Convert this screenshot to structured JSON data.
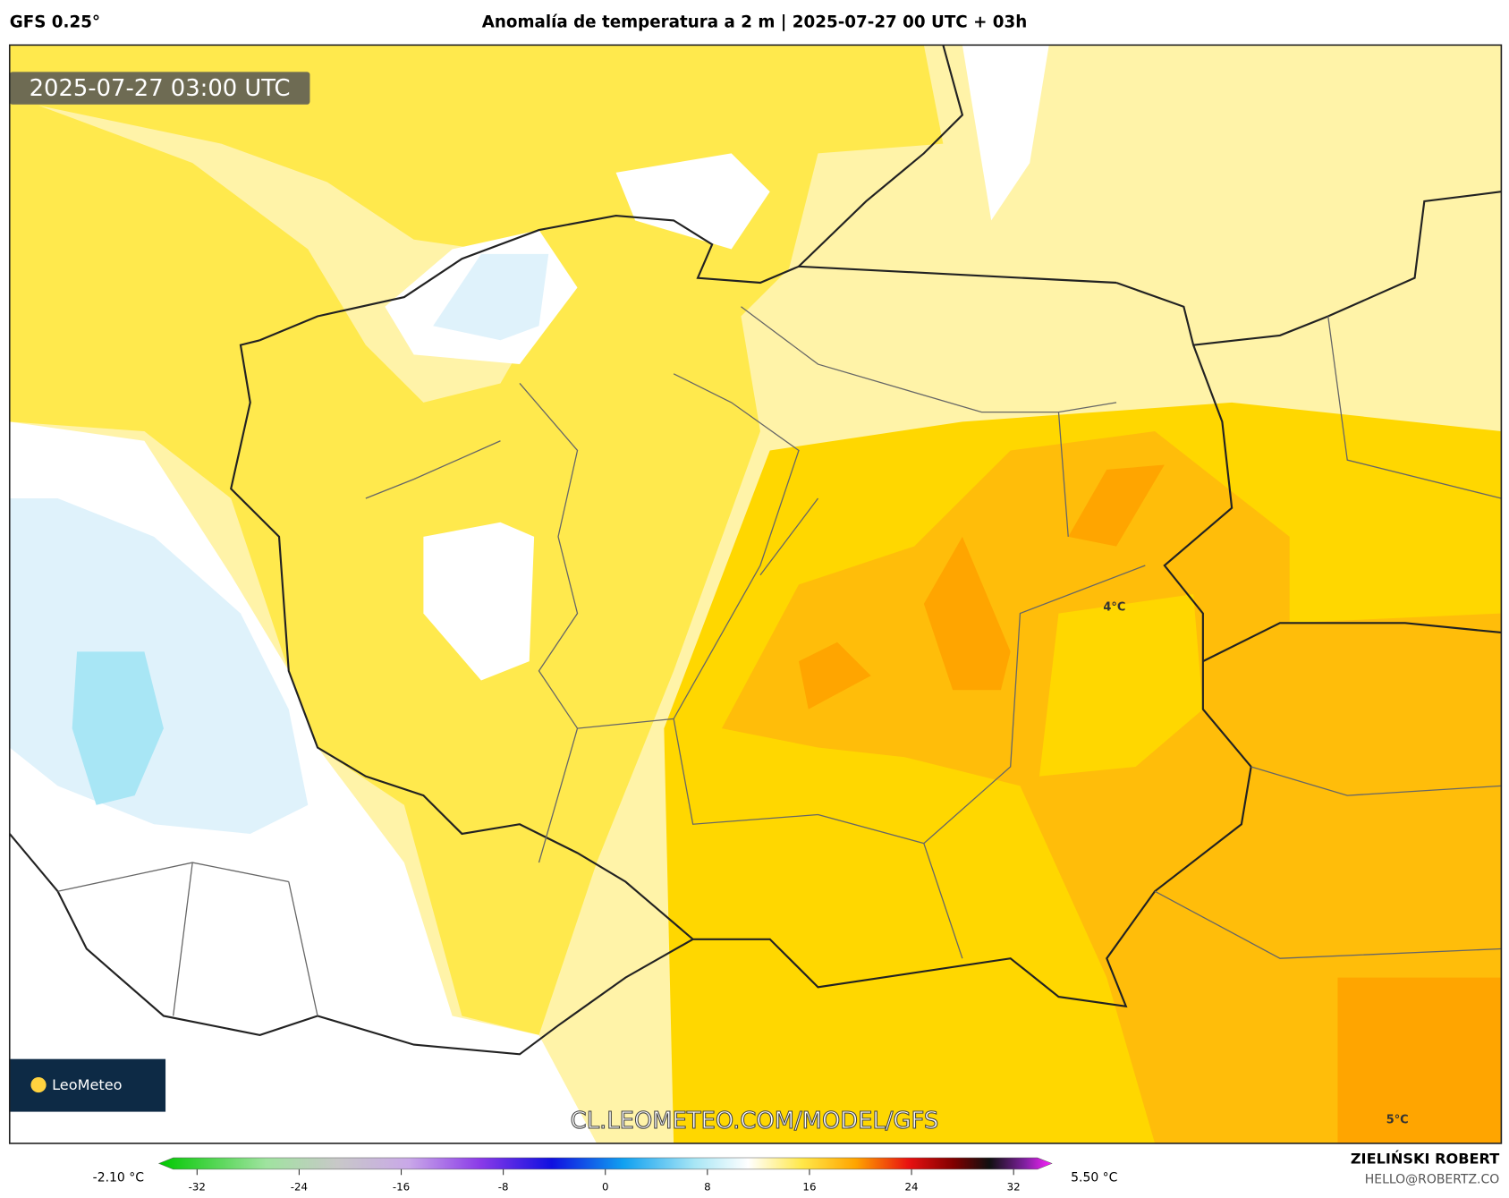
{
  "header": {
    "model": "GFS 0.25°",
    "title": "Anomalía de temperatura a 2 m | 2025-07-27 00 UTC + 03h"
  },
  "map": {
    "timestamp": "2025-07-27 03:00 UTC",
    "labels": [
      "4°C",
      "5°C"
    ],
    "watermark": "CL.LEOMETEO.COM/MODEL/GFS",
    "logo": "LeoMeteo"
  },
  "colorbar": {
    "min_label": "-2.10 °C",
    "max_label": "5.50 °C",
    "lim": [
      -35,
      35
    ],
    "ticks": [
      -32,
      -24,
      -16,
      -8,
      0,
      8,
      16,
      24,
      32
    ]
  },
  "footer": {
    "author": "ZIELIŃSKI ROBERT",
    "email": "HELLO@ROBERTZ.CO"
  }
}
